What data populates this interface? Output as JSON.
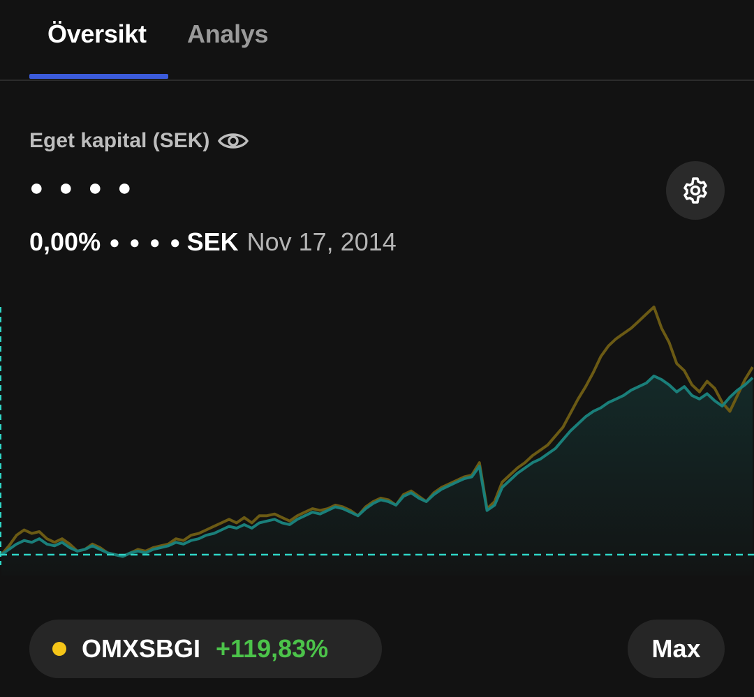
{
  "tabs": [
    {
      "label": "Översikt",
      "active": true
    },
    {
      "label": "Analys",
      "active": false
    }
  ],
  "header": {
    "equity_label": "Eget kapital (SEK)",
    "hidden_value": "● ● ● ●",
    "change_percent": "0,00%",
    "change_mask": "● ● ● ●",
    "change_currency": "SEK",
    "date": "Nov 17, 2014"
  },
  "icons": {
    "visibility": "eye-icon",
    "settings": "gear-icon"
  },
  "benchmark": {
    "name": "OMXSBGI",
    "change": "+119,83%",
    "dot_color": "#f5c518",
    "change_color": "#4cc34a"
  },
  "period": {
    "label": "Max"
  },
  "colors": {
    "portfolio_line": "#1a7f7a",
    "benchmark_line": "#6b5a14",
    "baseline": "#2fd6c6",
    "tab_indicator": "#3b5bdb"
  },
  "chart_data": {
    "type": "line",
    "baseline": 0,
    "series": [
      {
        "values": [
          0,
          3,
          6,
          8,
          7,
          9,
          6,
          5,
          7,
          4,
          2,
          3,
          5,
          3,
          1,
          0,
          -1,
          1,
          2,
          1,
          3,
          4,
          5,
          7,
          6,
          8,
          9,
          11,
          12,
          14,
          16,
          15,
          17,
          15,
          18,
          19,
          20,
          18,
          17,
          20,
          22,
          24,
          23,
          25,
          27,
          26,
          24,
          22,
          26,
          29,
          31,
          30,
          28,
          33,
          35,
          32,
          30,
          34,
          37,
          39,
          41,
          43,
          44,
          50,
          25,
          28,
          38,
          42,
          46,
          49,
          52,
          54,
          57,
          60,
          65,
          70,
          74,
          78,
          81,
          83,
          86,
          88,
          90,
          93,
          95,
          97,
          101,
          99,
          96,
          92,
          95,
          90,
          88,
          91,
          87,
          84,
          89,
          93,
          96,
          100
        ]
      },
      {
        "values": [
          0,
          5,
          11,
          14,
          12,
          13,
          9,
          7,
          9,
          6,
          2,
          3,
          6,
          4,
          1,
          0,
          -1,
          1,
          3,
          2,
          4,
          5,
          6,
          9,
          8,
          11,
          12,
          14,
          16,
          18,
          20,
          18,
          21,
          18,
          22,
          22,
          23,
          21,
          19,
          22,
          24,
          26,
          25,
          26,
          28,
          27,
          25,
          22,
          27,
          30,
          32,
          31,
          28,
          34,
          36,
          33,
          30,
          35,
          38,
          40,
          42,
          44,
          45,
          52,
          26,
          30,
          41,
          45,
          49,
          52,
          56,
          59,
          62,
          67,
          72,
          80,
          88,
          95,
          103,
          112,
          118,
          122,
          125,
          128,
          132,
          136,
          140,
          128,
          120,
          108,
          104,
          96,
          92,
          98,
          94,
          86,
          81,
          90,
          99,
          106
        ]
      }
    ]
  }
}
